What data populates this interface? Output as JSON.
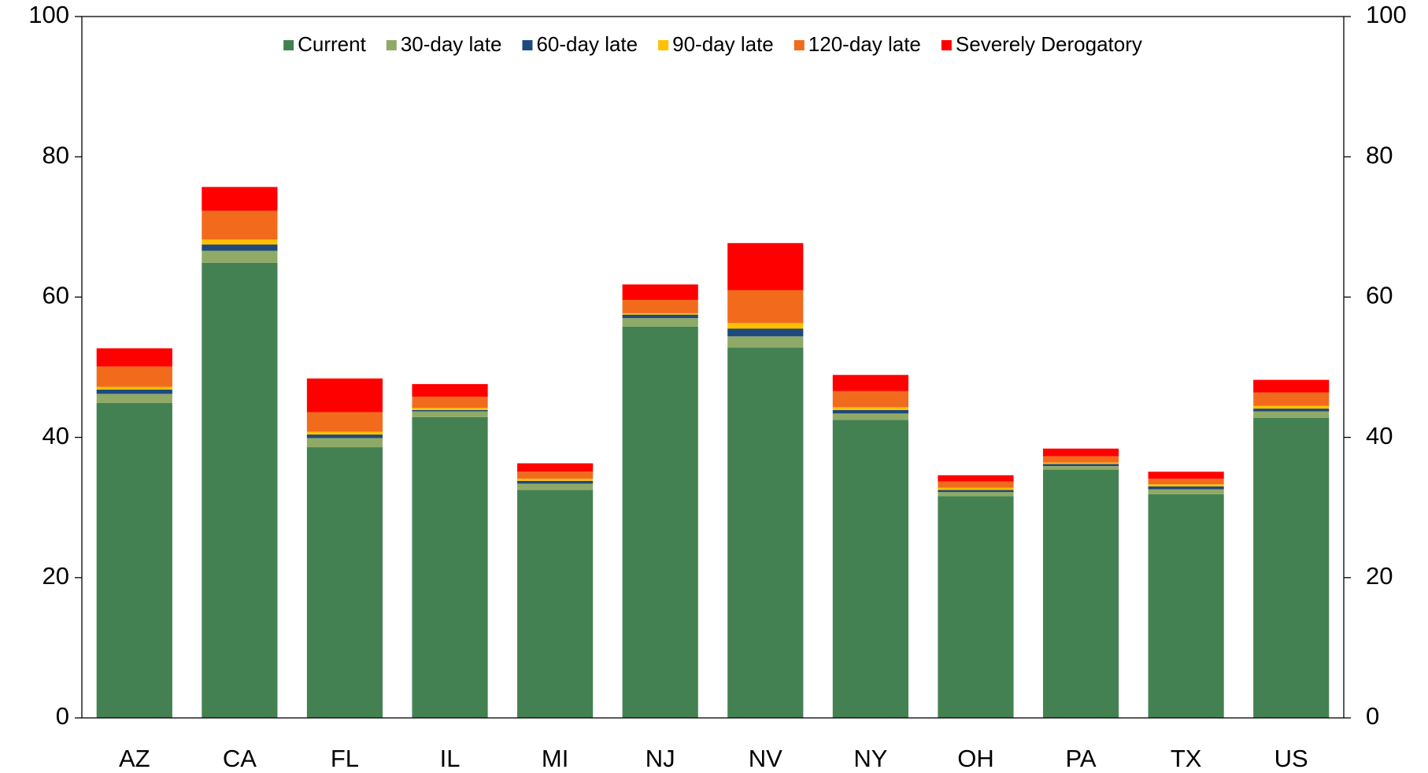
{
  "chart_data": {
    "type": "stacked_bar",
    "categories": [
      "AZ",
      "CA",
      "FL",
      "IL",
      "MI",
      "NJ",
      "NV",
      "NY",
      "OH",
      "PA",
      "TX",
      "US"
    ],
    "series": [
      {
        "name": "Current",
        "color": "#448152",
        "values": [
          44.9,
          64.9,
          38.6,
          42.9,
          32.5,
          55.8,
          52.8,
          42.5,
          31.6,
          35.4,
          31.9,
          42.8
        ]
      },
      {
        "name": "30-day late",
        "color": "#8faa66",
        "values": [
          1.3,
          1.7,
          1.3,
          0.8,
          0.9,
          1.2,
          1.6,
          0.9,
          0.6,
          0.5,
          0.7,
          0.9
        ]
      },
      {
        "name": "60-day late",
        "color": "#1f497d",
        "values": [
          0.6,
          0.9,
          0.5,
          0.2,
          0.4,
          0.5,
          1.1,
          0.5,
          0.3,
          0.3,
          0.4,
          0.4
        ]
      },
      {
        "name": "90-day late",
        "color": "#ffc000",
        "values": [
          0.4,
          0.7,
          0.4,
          0.3,
          0.3,
          0.2,
          0.8,
          0.4,
          0.3,
          0.2,
          0.3,
          0.4
        ]
      },
      {
        "name": "120-day late",
        "color": "#f26b1d",
        "values": [
          2.9,
          4.1,
          2.8,
          1.6,
          1.0,
          1.9,
          4.7,
          2.3,
          0.9,
          0.9,
          0.8,
          1.9
        ]
      },
      {
        "name": "Severely Derogatory",
        "color": "#ff0000",
        "values": [
          2.6,
          3.4,
          4.8,
          1.8,
          1.2,
          2.2,
          6.7,
          2.3,
          0.9,
          1.1,
          1.0,
          1.8
        ]
      }
    ],
    "ylim": [
      0,
      100
    ],
    "yticks": [
      0,
      20,
      40,
      60,
      80,
      100
    ],
    "y2lim": [
      0,
      100
    ],
    "y2ticks": [
      0,
      20,
      40,
      60,
      80,
      100
    ],
    "legend": "top"
  }
}
